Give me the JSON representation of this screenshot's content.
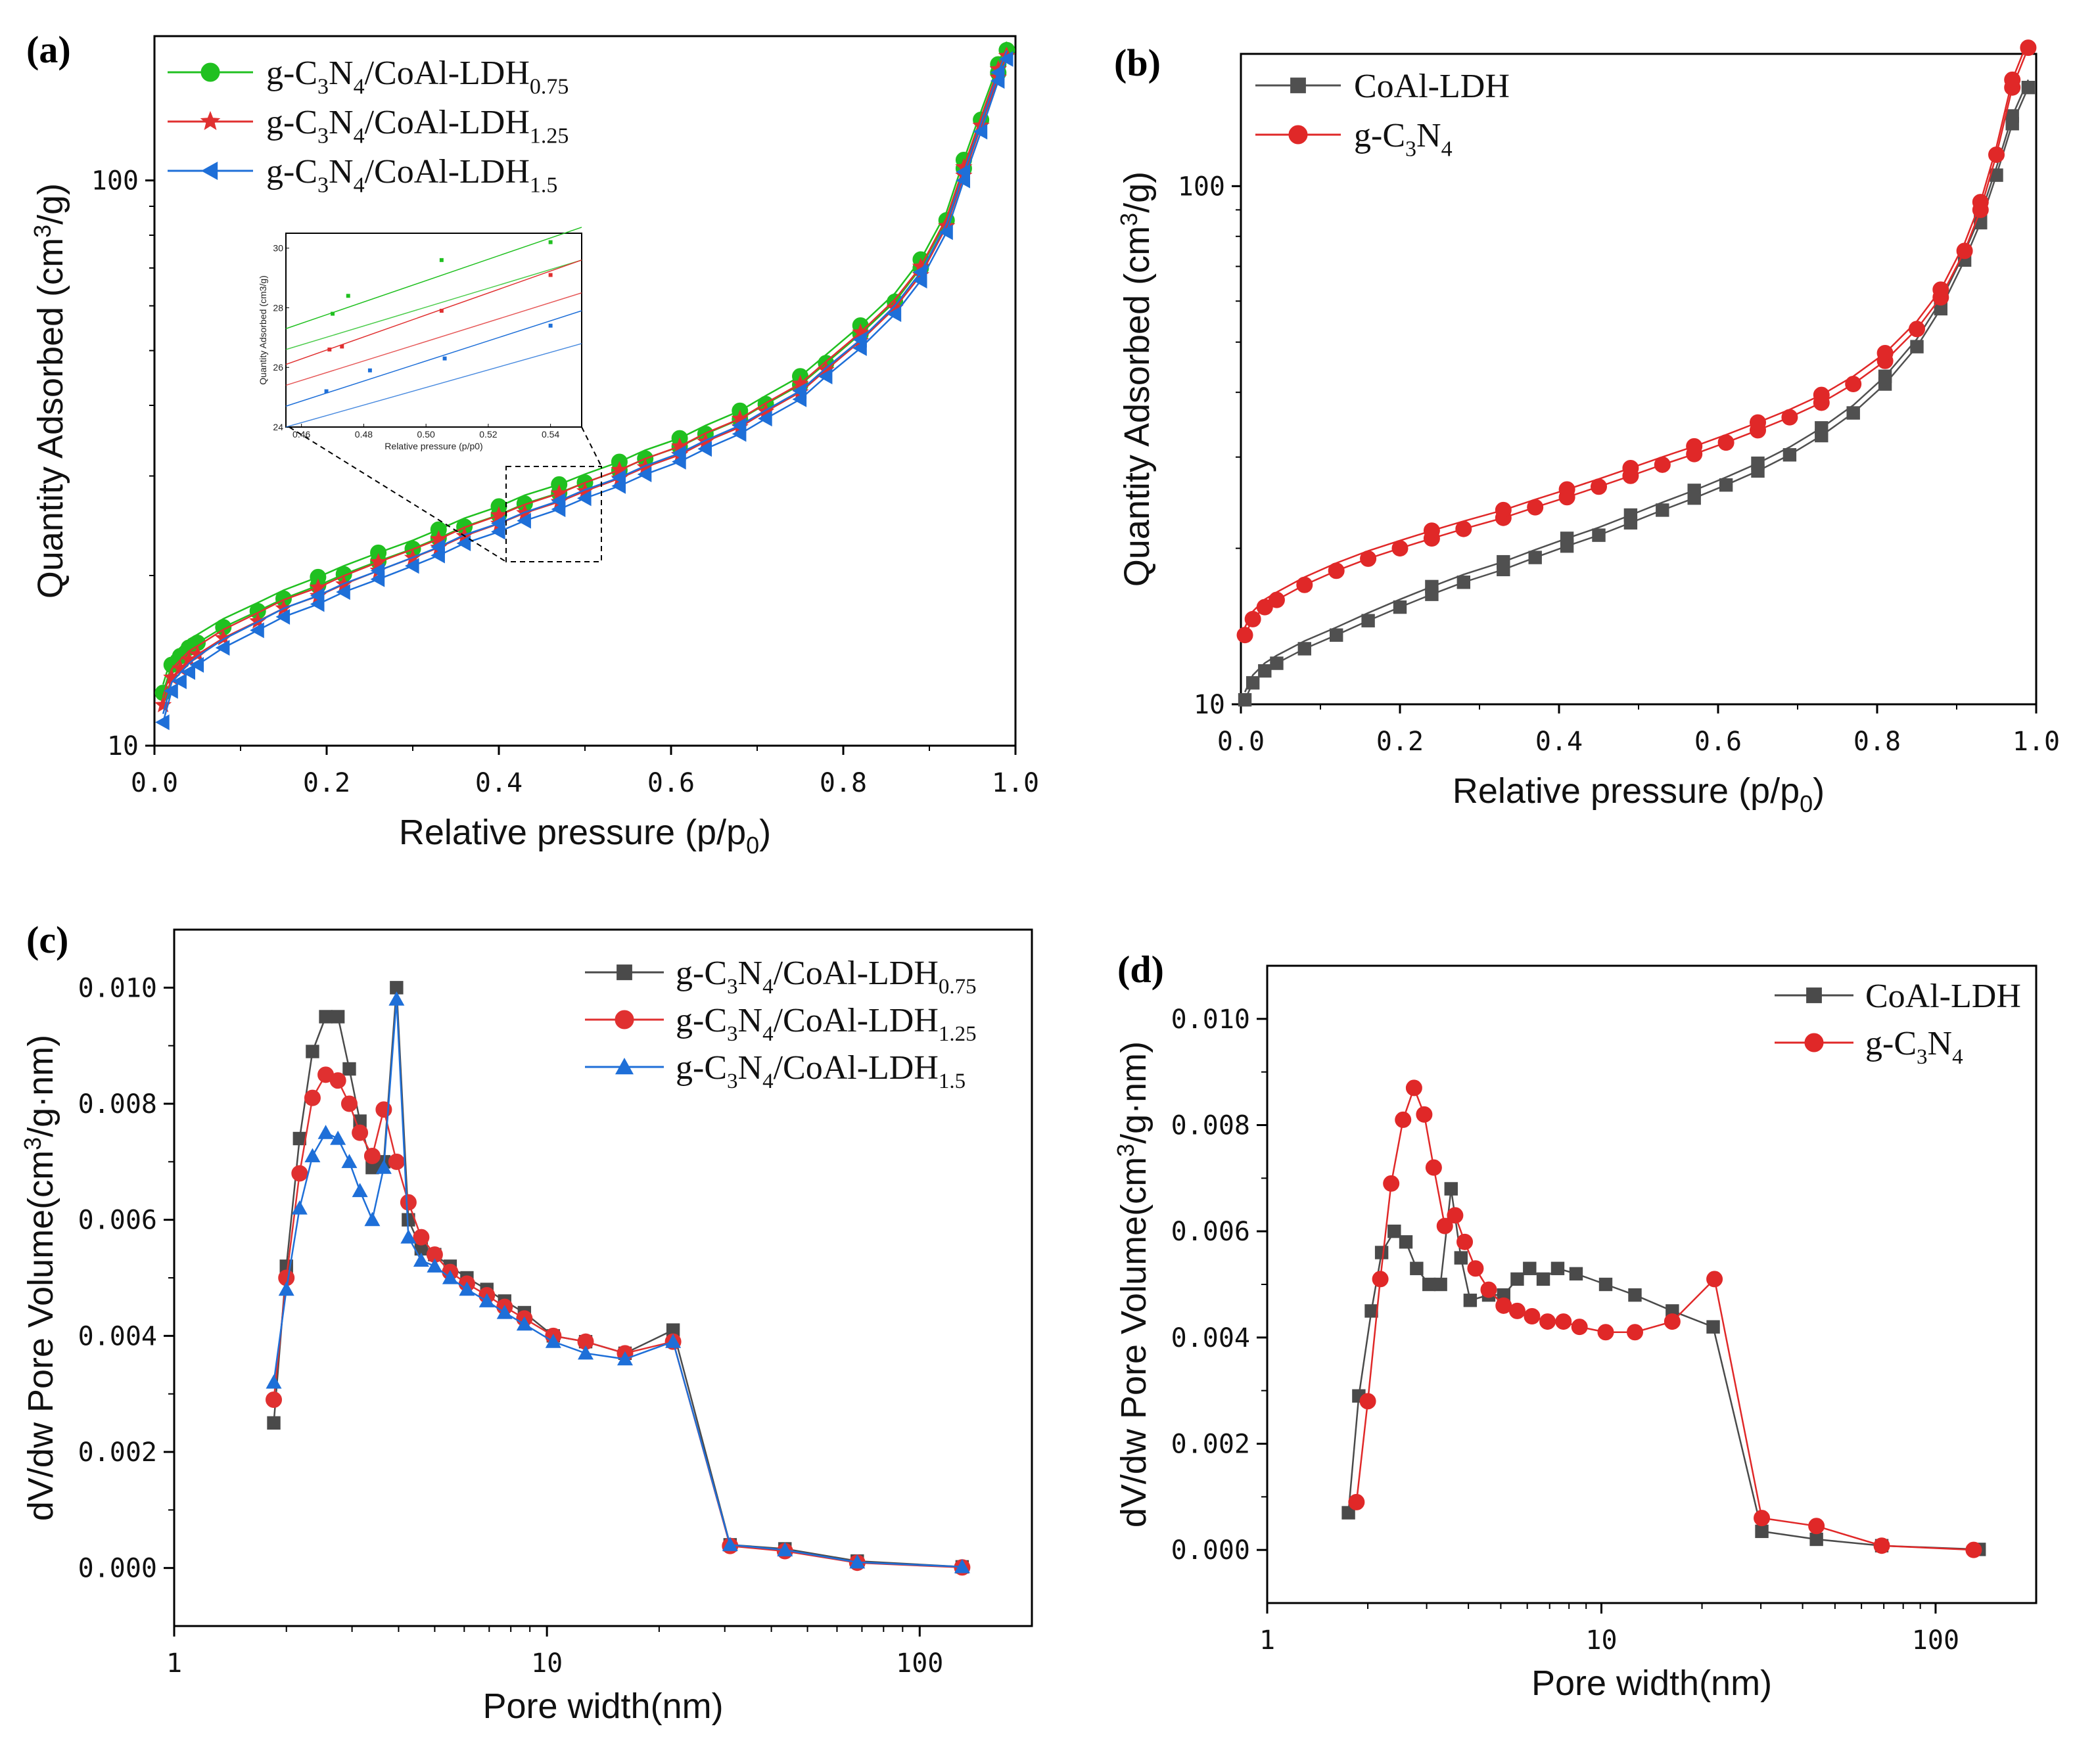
{
  "figure": "BET adsorption isotherms and pore size distributions",
  "chart_data": [
    {
      "panel": "(a)",
      "type": "line",
      "scale_y": "log",
      "xlabel": "Relative pressure",
      "xlabel_paren": "p/p",
      "xlabel_sub": "0",
      "ylabel": "Quantity Adsorbed",
      "ylabel_paren": "cm",
      "ylabel_sup": "3",
      "ylabel_tail": "/g",
      "xlim": [
        0,
        1.0
      ],
      "ylim": [
        10,
        180
      ],
      "x_ticks": [
        "0.0",
        "0.2",
        "0.4",
        "0.6",
        "0.8",
        "1.0"
      ],
      "y_ticks": [
        "10",
        "100"
      ],
      "legend_position": "top-left",
      "x": [
        0.01,
        0.02,
        0.03,
        0.04,
        0.05,
        0.08,
        0.12,
        0.15,
        0.19,
        0.22,
        0.26,
        0.3,
        0.33,
        0.36,
        0.4,
        0.43,
        0.47,
        0.5,
        0.54,
        0.57,
        0.61,
        0.64,
        0.68,
        0.71,
        0.75,
        0.78,
        0.82,
        0.86,
        0.89,
        0.92,
        0.94,
        0.96,
        0.98,
        0.99
      ],
      "series": [
        {
          "name": "g-C3N4/CoAl-LDH0.75",
          "label_main": "g-C",
          "label_sub1": "3",
          "label_mid1": "N",
          "label_sub2": "4",
          "label_mid2": "/CoAl-LDH",
          "label_sub3": "0.75",
          "color": "#20c020",
          "marker": "circle",
          "values": [
            12.4,
            13.9,
            14.4,
            14.9,
            15.2,
            16.2,
            17.3,
            18.2,
            19.2,
            20.1,
            21.2,
            22.3,
            23.3,
            24.4,
            25.6,
            26.8,
            28.0,
            29.2,
            30.7,
            32.2,
            33.8,
            35.6,
            37.8,
            40.2,
            43.5,
            47.5,
            53.5,
            61.0,
            70.0,
            85.0,
            105.0,
            128.0,
            155.0,
            170.0
          ]
        },
        {
          "name": "g-C3N4/CoAl-LDH1.25",
          "label_main": "g-C",
          "label_sub1": "3",
          "label_mid1": "N",
          "label_sub2": "4",
          "label_mid2": "/CoAl-LDH",
          "label_sub3": "1.25",
          "color": "#e03030",
          "marker": "star",
          "values": [
            11.8,
            13.2,
            13.7,
            14.2,
            14.5,
            15.5,
            16.6,
            17.5,
            18.4,
            19.3,
            20.4,
            21.5,
            22.4,
            23.5,
            24.7,
            25.8,
            27.0,
            28.2,
            29.7,
            31.1,
            32.7,
            34.5,
            36.6,
            39.0,
            42.2,
            46.2,
            52.0,
            59.5,
            68.0,
            83.0,
            102.0,
            125.0,
            152.0,
            166.0
          ]
        },
        {
          "name": "g-C3N4/CoAl-LDH1.5",
          "label_main": "g-C",
          "label_sub1": "3",
          "label_mid1": "N",
          "label_sub2": "4",
          "label_mid2": "/CoAl-LDH",
          "label_sub3": "1.5",
          "color": "#1e6fd8",
          "marker": "triangle-left",
          "values": [
            11.0,
            12.5,
            13.0,
            13.5,
            13.9,
            14.9,
            16.0,
            16.9,
            17.8,
            18.7,
            19.7,
            20.8,
            21.7,
            22.8,
            23.9,
            25.0,
            26.2,
            27.4,
            28.8,
            30.2,
            31.8,
            33.5,
            35.6,
            37.9,
            41.0,
            45.0,
            50.5,
            58.0,
            66.5,
            81.0,
            100.0,
            122.0,
            150.0,
            164.0
          ]
        }
      ],
      "inset": {
        "xlabel": "Relative pressure (p/p0)",
        "ylabel": "Quantity Adsorbed (cm3/g)",
        "x_ticks": [
          "0.46",
          "0.48",
          "0.50",
          "0.52",
          "0.54"
        ],
        "y_ticks": [
          "24",
          "26",
          "28",
          "30"
        ]
      }
    },
    {
      "panel": "(b)",
      "type": "line",
      "scale_y": "log",
      "xlabel": "Relative pressure",
      "xlabel_paren": "p/p",
      "xlabel_sub": "0",
      "ylabel": "Quantity Adsorbed",
      "ylabel_paren": "cm",
      "ylabel_sup": "3",
      "ylabel_tail": "/g",
      "xlim": [
        0,
        1.0
      ],
      "ylim": [
        10,
        180
      ],
      "x_ticks": [
        "0.0",
        "0.2",
        "0.4",
        "0.6",
        "0.8",
        "1.0"
      ],
      "y_ticks": [
        "10",
        "100"
      ],
      "legend_position": "top-left",
      "x": [
        0.005,
        0.015,
        0.03,
        0.045,
        0.08,
        0.12,
        0.16,
        0.2,
        0.24,
        0.28,
        0.33,
        0.37,
        0.41,
        0.45,
        0.49,
        0.53,
        0.57,
        0.61,
        0.65,
        0.69,
        0.73,
        0.77,
        0.81,
        0.85,
        0.88,
        0.91,
        0.93,
        0.95,
        0.97,
        0.99
      ],
      "series": [
        {
          "name": "CoAl-LDH",
          "label_main": "CoAl-LDH",
          "color": "#505050",
          "marker": "square",
          "values": [
            10.2,
            11.0,
            11.6,
            12.0,
            12.8,
            13.6,
            14.5,
            15.4,
            16.3,
            17.2,
            18.2,
            19.2,
            20.2,
            21.2,
            22.4,
            23.7,
            25.0,
            26.5,
            28.2,
            30.3,
            33.0,
            36.5,
            41.5,
            49.0,
            58.0,
            72.0,
            85.0,
            105.0,
            132.0,
            155.0
          ]
        },
        {
          "name": "g-C3N4",
          "label_main": "g-C",
          "label_sub1": "3",
          "label_mid1": "N",
          "label_sub2": "4",
          "color": "#e02828",
          "marker": "circle",
          "values": [
            13.6,
            14.6,
            15.4,
            15.9,
            17.0,
            18.1,
            19.1,
            20.0,
            20.9,
            21.8,
            22.9,
            24.0,
            25.1,
            26.3,
            27.6,
            29.0,
            30.4,
            32.0,
            33.8,
            35.8,
            38.2,
            41.5,
            46.0,
            53.0,
            61.0,
            75.0,
            90.0,
            115.0,
            155.0,
            185.0
          ]
        }
      ]
    },
    {
      "panel": "(c)",
      "type": "line",
      "scale_x": "log",
      "xlabel": "Pore width(nm)",
      "ylabel": "dV/dw Pore Volume(cm",
      "ylabel_sup": "3",
      "ylabel_tail": "/g·nm)",
      "xlim": [
        1,
        200
      ],
      "ylim": [
        -0.001,
        0.011
      ],
      "x_ticks": [
        "1",
        "10",
        "100"
      ],
      "y_ticks": [
        "0.000",
        "0.002",
        "0.004",
        "0.006",
        "0.008",
        "0.010"
      ],
      "legend_position": "top-right",
      "x": [
        1.85,
        2.0,
        2.17,
        2.35,
        2.55,
        2.75,
        2.95,
        3.15,
        3.4,
        3.65,
        3.95,
        4.25,
        4.6,
        5.0,
        5.5,
        6.1,
        6.9,
        7.7,
        8.7,
        10.4,
        12.7,
        16.2,
        21.8,
        31.0,
        43.5,
        68.0,
        130.0
      ],
      "series": [
        {
          "name": "g-C3N4/CoAl-LDH0.75",
          "label_main": "g-C",
          "label_sub1": "3",
          "label_mid1": "N",
          "label_sub2": "4",
          "label_mid2": "/CoAl-LDH",
          "label_sub3": "0.75",
          "color": "#4a4a4a",
          "marker": "square",
          "values": [
            0.0025,
            0.0052,
            0.0074,
            0.0089,
            0.0095,
            0.0095,
            0.0086,
            0.0077,
            0.0069,
            0.007,
            0.01,
            0.006,
            0.0055,
            0.0054,
            0.0052,
            0.005,
            0.0048,
            0.0046,
            0.0044,
            0.004,
            0.0039,
            0.0037,
            0.0041,
            0.0004,
            0.00033,
            0.00012,
            2e-05
          ]
        },
        {
          "name": "g-C3N4/CoAl-LDH1.25",
          "label_main": "g-C",
          "label_sub1": "3",
          "label_mid1": "N",
          "label_sub2": "4",
          "label_mid2": "/CoAl-LDH",
          "label_sub3": "1.25",
          "color": "#e03030",
          "marker": "circle",
          "values": [
            0.0029,
            0.005,
            0.0068,
            0.0081,
            0.0085,
            0.0084,
            0.008,
            0.0075,
            0.0071,
            0.0079,
            0.007,
            0.0063,
            0.0057,
            0.0054,
            0.0051,
            0.0049,
            0.0047,
            0.0045,
            0.0043,
            0.004,
            0.0039,
            0.0037,
            0.0039,
            0.00038,
            0.00029,
            9e-05,
            1e-05
          ]
        },
        {
          "name": "g-C3N4/CoAl-LDH1.5",
          "label_main": "g-C",
          "label_sub1": "3",
          "label_mid1": "N",
          "label_sub2": "4",
          "label_mid2": "/CoAl-LDH",
          "label_sub3": "1.5",
          "color": "#1e6fd8",
          "marker": "triangle",
          "values": [
            0.0032,
            0.0048,
            0.0062,
            0.0071,
            0.0075,
            0.0074,
            0.007,
            0.0065,
            0.006,
            0.0069,
            0.0098,
            0.0057,
            0.0053,
            0.0052,
            0.005,
            0.0048,
            0.0046,
            0.0044,
            0.0042,
            0.0039,
            0.0037,
            0.0036,
            0.0039,
            0.0004,
            0.00031,
            0.0001,
            2e-05
          ]
        }
      ]
    },
    {
      "panel": "(d)",
      "type": "line",
      "scale_x": "log",
      "xlabel": "Pore width(nm)",
      "ylabel": "dV/dw Pore Volume(cm",
      "ylabel_sup": "3",
      "ylabel_tail": "/g·nm)",
      "xlim": [
        1,
        200
      ],
      "ylim": [
        -0.001,
        0.011
      ],
      "x_ticks": [
        "1",
        "10",
        "100"
      ],
      "y_ticks": [
        "0.000",
        "0.002",
        "0.004",
        "0.006",
        "0.008",
        "0.010"
      ],
      "legend_position": "top-right",
      "series": [
        {
          "name": "CoAl-LDH",
          "label_main": "CoAl-LDH",
          "color": "#4a4a4a",
          "marker": "square",
          "x": [
            1.75,
            1.88,
            2.05,
            2.2,
            2.4,
            2.6,
            2.8,
            3.05,
            3.3,
            3.55,
            3.8,
            4.05,
            4.6,
            5.1,
            5.6,
            6.1,
            6.7,
            7.4,
            8.4,
            10.3,
            12.6,
            16.3,
            21.6,
            30.2,
            44.0,
            69.0,
            135.0
          ],
          "y": [
            0.0007,
            0.0029,
            0.0045,
            0.0056,
            0.006,
            0.0058,
            0.0053,
            0.005,
            0.005,
            0.0068,
            0.0055,
            0.0047,
            0.0048,
            0.0048,
            0.0051,
            0.0053,
            0.0051,
            0.0053,
            0.0052,
            0.005,
            0.0048,
            0.0045,
            0.0042,
            0.00035,
            0.0002,
            8e-05,
            1e-05
          ]
        },
        {
          "name": "g-C3N4",
          "label_main": "g-C",
          "label_sub1": "3",
          "label_mid1": "N",
          "label_sub2": "4",
          "color": "#e02828",
          "marker": "circle",
          "x": [
            1.85,
            2.0,
            2.18,
            2.35,
            2.55,
            2.75,
            2.95,
            3.15,
            3.4,
            3.65,
            3.9,
            4.2,
            4.6,
            5.1,
            5.6,
            6.2,
            6.9,
            7.7,
            8.6,
            10.3,
            12.6,
            16.3,
            21.8,
            30.2,
            44.0,
            69.0,
            130.0
          ],
          "y": [
            0.0009,
            0.0028,
            0.0051,
            0.0069,
            0.0081,
            0.0087,
            0.0082,
            0.0072,
            0.0061,
            0.0063,
            0.0058,
            0.0053,
            0.0049,
            0.0046,
            0.0045,
            0.0044,
            0.0043,
            0.0043,
            0.0042,
            0.0041,
            0.0041,
            0.0043,
            0.0051,
            0.0006,
            0.00045,
            8e-05,
            0.0
          ]
        }
      ]
    }
  ]
}
